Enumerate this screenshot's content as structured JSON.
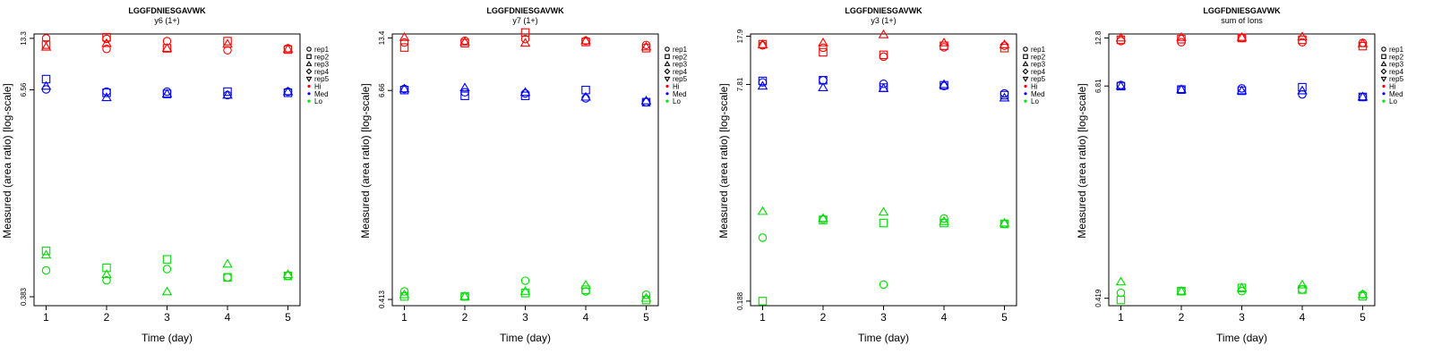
{
  "chart_data": [
    {
      "type": "scatter",
      "title": "LGGFDNIESGAVWK",
      "subtitle": "y6 (1+)",
      "xlabel": "Time (day)",
      "ylabel": "Measured (area ratio) [log-scale]",
      "xticks": [
        "1",
        "2",
        "3",
        "4",
        "5"
      ],
      "yticks": [
        "0.383",
        "6.56",
        "13.3"
      ],
      "xlim": [
        0.8,
        5.2
      ],
      "ylim_log10": [
        -0.47,
        1.15
      ],
      "log_scale_y": true,
      "legend_placement": "right",
      "series": [
        {
          "group": "Hi",
          "color": "#ff0000",
          "points": [
            [
              1,
              13.3,
              "rep1"
            ],
            [
              1,
              12.2,
              "rep2"
            ],
            [
              1,
              11.8,
              "rep3"
            ],
            [
              2,
              13.2,
              "rep1"
            ],
            [
              2,
              11.5,
              "rep1"
            ],
            [
              2,
              13.5,
              "rep2"
            ],
            [
              2,
              12.4,
              "rep3"
            ],
            [
              3,
              12.8,
              "rep1"
            ],
            [
              3,
              11.6,
              "rep2"
            ],
            [
              3,
              11.6,
              "rep3"
            ],
            [
              4,
              12.8,
              "rep2"
            ],
            [
              4,
              11.3,
              "rep1"
            ],
            [
              4,
              12.3,
              "rep3"
            ],
            [
              5,
              11.6,
              "rep1"
            ],
            [
              5,
              11.4,
              "rep2"
            ],
            [
              5,
              11.5,
              "rep3"
            ]
          ]
        },
        {
          "group": "Med",
          "color": "#0000ff",
          "points": [
            [
              1,
              7.6,
              "rep2"
            ],
            [
              1,
              6.6,
              "rep1"
            ],
            [
              1,
              6.9,
              "rep3"
            ],
            [
              2,
              6.4,
              "rep1"
            ],
            [
              2,
              6.3,
              "rep2"
            ],
            [
              2,
              5.9,
              "rep3"
            ],
            [
              3,
              6.4,
              "rep1"
            ],
            [
              3,
              6.2,
              "rep2"
            ],
            [
              3,
              6.2,
              "rep3"
            ],
            [
              4,
              6.4,
              "rep2"
            ],
            [
              4,
              6.1,
              "rep1"
            ],
            [
              4,
              6.1,
              "rep3"
            ],
            [
              5,
              6.4,
              "rep1"
            ],
            [
              5,
              6.3,
              "rep2"
            ],
            [
              5,
              6.4,
              "rep3"
            ]
          ]
        },
        {
          "group": "Lo",
          "color": "#00dd00",
          "points": [
            [
              1,
              0.72,
              "rep2"
            ],
            [
              1,
              0.68,
              "rep3"
            ],
            [
              1,
              0.55,
              "rep1"
            ],
            [
              2,
              0.57,
              "rep2"
            ],
            [
              2,
              0.52,
              "rep3"
            ],
            [
              2,
              0.48,
              "rep1"
            ],
            [
              3,
              0.64,
              "rep2"
            ],
            [
              3,
              0.56,
              "rep1"
            ],
            [
              3,
              0.41,
              "rep3"
            ],
            [
              4,
              0.6,
              "rep3"
            ],
            [
              4,
              0.5,
              "rep1"
            ],
            [
              4,
              0.5,
              "rep2"
            ],
            [
              5,
              0.51,
              "rep1"
            ],
            [
              5,
              0.51,
              "rep2"
            ],
            [
              5,
              0.52,
              "rep3"
            ]
          ]
        }
      ]
    },
    {
      "type": "scatter",
      "title": "LGGFDNIESGAVWK",
      "subtitle": "y7 (1+)",
      "xlabel": "Time (day)",
      "ylabel": "Measured (area ratio) [log-scale]",
      "xticks": [
        "1",
        "2",
        "3",
        "4",
        "5"
      ],
      "yticks": [
        "0.413",
        "6.66",
        "13.4"
      ],
      "xlim": [
        0.8,
        5.2
      ],
      "ylim_log10": [
        -0.42,
        1.15
      ],
      "log_scale_y": true,
      "legend_placement": "right",
      "series": [
        {
          "group": "Hi",
          "color": "#ff0000",
          "points": [
            [
              1,
              13.5,
              "rep3"
            ],
            [
              1,
              12.6,
              "rep1"
            ],
            [
              1,
              11.8,
              "rep2"
            ],
            [
              2,
              12.9,
              "rep1"
            ],
            [
              2,
              12.5,
              "rep2"
            ],
            [
              2,
              12.7,
              "rep3"
            ],
            [
              3,
              14.4,
              "rep2"
            ],
            [
              3,
              13.2,
              "rep1"
            ],
            [
              3,
              12.5,
              "rep3"
            ],
            [
              4,
              12.9,
              "rep1"
            ],
            [
              4,
              12.7,
              "rep2"
            ],
            [
              4,
              12.9,
              "rep3"
            ],
            [
              5,
              12.2,
              "rep1"
            ],
            [
              5,
              11.7,
              "rep2"
            ],
            [
              5,
              11.9,
              "rep3"
            ]
          ]
        },
        {
          "group": "Med",
          "color": "#0000ff",
          "points": [
            [
              1,
              6.8,
              "rep1"
            ],
            [
              1,
              6.7,
              "rep2"
            ],
            [
              1,
              6.8,
              "rep3"
            ],
            [
              2,
              6.5,
              "rep1"
            ],
            [
              2,
              6.2,
              "rep2"
            ],
            [
              2,
              6.9,
              "rep3"
            ],
            [
              3,
              6.4,
              "rep1"
            ],
            [
              3,
              6.2,
              "rep2"
            ],
            [
              3,
              6.5,
              "rep3"
            ],
            [
              4,
              6.7,
              "rep2"
            ],
            [
              4,
              6.0,
              "rep1"
            ],
            [
              4,
              6.1,
              "rep3"
            ],
            [
              5,
              5.7,
              "rep1"
            ],
            [
              5,
              5.7,
              "rep2"
            ],
            [
              5,
              5.8,
              "rep3"
            ]
          ]
        },
        {
          "group": "Lo",
          "color": "#00dd00",
          "points": [
            [
              1,
              0.46,
              "rep1"
            ],
            [
              1,
              0.43,
              "rep2"
            ],
            [
              1,
              0.44,
              "rep3"
            ],
            [
              2,
              0.43,
              "rep1"
            ],
            [
              2,
              0.43,
              "rep2"
            ],
            [
              2,
              0.43,
              "rep3"
            ],
            [
              3,
              0.53,
              "rep1"
            ],
            [
              3,
              0.45,
              "rep2"
            ],
            [
              3,
              0.46,
              "rep3"
            ],
            [
              4,
              0.46,
              "rep1"
            ],
            [
              4,
              0.47,
              "rep2"
            ],
            [
              4,
              0.5,
              "rep3"
            ],
            [
              5,
              0.44,
              "rep1"
            ],
            [
              5,
              0.41,
              "rep2"
            ],
            [
              5,
              0.42,
              "rep3"
            ]
          ]
        }
      ]
    },
    {
      "type": "scatter",
      "title": "LGGFDNIESGAVWK",
      "subtitle": "y3 (1+)",
      "xlabel": "Time (day)",
      "ylabel": "Measured (area ratio) [log-scale]",
      "xticks": [
        "1",
        "2",
        "3",
        "4",
        "5"
      ],
      "yticks": [
        "0.188",
        "7.81",
        "17.9"
      ],
      "xlim": [
        0.8,
        5.2
      ],
      "ylim_log10": [
        -0.76,
        1.27
      ],
      "log_scale_y": true,
      "legend_placement": "right",
      "series": [
        {
          "group": "Hi",
          "color": "#ff0000",
          "points": [
            [
              1,
              15.3,
              "rep1"
            ],
            [
              1,
              15.6,
              "rep2"
            ],
            [
              1,
              15.5,
              "rep3"
            ],
            [
              2,
              14.7,
              "rep1"
            ],
            [
              2,
              13.6,
              "rep2"
            ],
            [
              2,
              16.0,
              "rep3"
            ],
            [
              3,
              12.6,
              "rep1"
            ],
            [
              3,
              13.0,
              "rep2"
            ],
            [
              3,
              18.4,
              "rep3"
            ],
            [
              4,
              14.8,
              "rep1"
            ],
            [
              4,
              15.2,
              "rep2"
            ],
            [
              4,
              16.0,
              "rep3"
            ],
            [
              5,
              15.2,
              "rep1"
            ],
            [
              5,
              14.6,
              "rep2"
            ],
            [
              5,
              15.5,
              "rep3"
            ]
          ]
        },
        {
          "group": "Med",
          "color": "#0000ff",
          "points": [
            [
              1,
              8.1,
              "rep1"
            ],
            [
              1,
              8.3,
              "rep2"
            ],
            [
              1,
              7.6,
              "rep3"
            ],
            [
              2,
              8.4,
              "rep1"
            ],
            [
              2,
              8.4,
              "rep2"
            ],
            [
              2,
              7.4,
              "rep3"
            ],
            [
              3,
              7.9,
              "rep1"
            ],
            [
              3,
              7.4,
              "rep2"
            ],
            [
              3,
              7.3,
              "rep3"
            ],
            [
              4,
              7.6,
              "rep1"
            ],
            [
              4,
              7.7,
              "rep2"
            ],
            [
              4,
              7.8,
              "rep3"
            ],
            [
              5,
              6.7,
              "rep1"
            ],
            [
              5,
              6.5,
              "rep2"
            ],
            [
              5,
              6.2,
              "rep3"
            ]
          ]
        },
        {
          "group": "Lo",
          "color": "#00dd00",
          "points": [
            [
              1,
              0.56,
              "rep1"
            ],
            [
              1,
              0.188,
              "rep2"
            ],
            [
              1,
              0.88,
              "rep3"
            ],
            [
              2,
              0.77,
              "rep1"
            ],
            [
              2,
              0.76,
              "rep2"
            ],
            [
              2,
              0.78,
              "rep3"
            ],
            [
              3,
              0.25,
              "rep1"
            ],
            [
              3,
              0.72,
              "rep2"
            ],
            [
              3,
              0.87,
              "rep3"
            ],
            [
              4,
              0.78,
              "rep1"
            ],
            [
              4,
              0.72,
              "rep2"
            ],
            [
              4,
              0.74,
              "rep3"
            ],
            [
              5,
              0.71,
              "rep1"
            ],
            [
              5,
              0.71,
              "rep2"
            ],
            [
              5,
              0.72,
              "rep3"
            ]
          ]
        }
      ]
    },
    {
      "type": "scatter",
      "title": "LGGFDNIESGAVWK",
      "subtitle": "sum of Ions",
      "xlabel": "Time (day)",
      "ylabel": "Measured (area ratio) [log-scale]",
      "xticks": [
        "1",
        "2",
        "3",
        "4",
        "5"
      ],
      "yticks": [
        "0.419",
        "6.81",
        "12.8"
      ],
      "xlim": [
        0.8,
        5.2
      ],
      "ylim_log10": [
        -0.42,
        1.13
      ],
      "log_scale_y": true,
      "legend_placement": "right",
      "series": [
        {
          "group": "Hi",
          "color": "#ff0000",
          "points": [
            [
              1,
              12.3,
              "rep1"
            ],
            [
              1,
              12.5,
              "rep2"
            ],
            [
              1,
              12.8,
              "rep3"
            ],
            [
              2,
              12.1,
              "rep1"
            ],
            [
              2,
              12.6,
              "rep2"
            ],
            [
              2,
              12.9,
              "rep3"
            ],
            [
              3,
              12.8,
              "rep1"
            ],
            [
              3,
              12.8,
              "rep2"
            ],
            [
              3,
              12.9,
              "rep3"
            ],
            [
              4,
              12.1,
              "rep1"
            ],
            [
              4,
              12.5,
              "rep2"
            ],
            [
              4,
              13.0,
              "rep3"
            ],
            [
              5,
              12.0,
              "rep1"
            ],
            [
              5,
              11.5,
              "rep2"
            ],
            [
              5,
              11.9,
              "rep3"
            ]
          ]
        },
        {
          "group": "Med",
          "color": "#0000ff",
          "points": [
            [
              1,
              6.9,
              "rep1"
            ],
            [
              1,
              6.8,
              "rep2"
            ],
            [
              1,
              6.8,
              "rep3"
            ],
            [
              2,
              6.5,
              "rep1"
            ],
            [
              2,
              6.5,
              "rep2"
            ],
            [
              2,
              6.5,
              "rep3"
            ],
            [
              3,
              6.6,
              "rep1"
            ],
            [
              3,
              6.4,
              "rep2"
            ],
            [
              3,
              6.4,
              "rep3"
            ],
            [
              4,
              6.1,
              "rep1"
            ],
            [
              4,
              6.7,
              "rep2"
            ],
            [
              4,
              6.4,
              "rep3"
            ],
            [
              5,
              5.9,
              "rep1"
            ],
            [
              5,
              5.9,
              "rep2"
            ],
            [
              5,
              5.9,
              "rep3"
            ]
          ]
        },
        {
          "group": "Lo",
          "color": "#00dd00",
          "points": [
            [
              1,
              0.45,
              "rep1"
            ],
            [
              1,
              0.41,
              "rep2"
            ],
            [
              1,
              0.52,
              "rep3"
            ],
            [
              2,
              0.46,
              "rep1"
            ],
            [
              2,
              0.46,
              "rep2"
            ],
            [
              2,
              0.46,
              "rep3"
            ],
            [
              3,
              0.46,
              "rep1"
            ],
            [
              3,
              0.48,
              "rep2"
            ],
            [
              3,
              0.48,
              "rep3"
            ],
            [
              4,
              0.47,
              "rep1"
            ],
            [
              4,
              0.47,
              "rep2"
            ],
            [
              4,
              0.5,
              "rep3"
            ],
            [
              5,
              0.44,
              "rep1"
            ],
            [
              5,
              0.43,
              "rep2"
            ],
            [
              5,
              0.44,
              "rep3"
            ]
          ]
        }
      ]
    }
  ],
  "legend": {
    "entries": [
      {
        "label": "rep1",
        "marker": "circle"
      },
      {
        "label": "rep2",
        "marker": "square"
      },
      {
        "label": "rep3",
        "marker": "triangle-up"
      },
      {
        "label": "rep4",
        "marker": "diamond"
      },
      {
        "label": "rep5",
        "marker": "triangle-down"
      },
      {
        "label": "Hi",
        "marker": "dot",
        "color": "#ff0000"
      },
      {
        "label": "Med",
        "marker": "dot",
        "color": "#0000ff"
      },
      {
        "label": "Lo",
        "marker": "dot",
        "color": "#00dd00"
      }
    ]
  }
}
